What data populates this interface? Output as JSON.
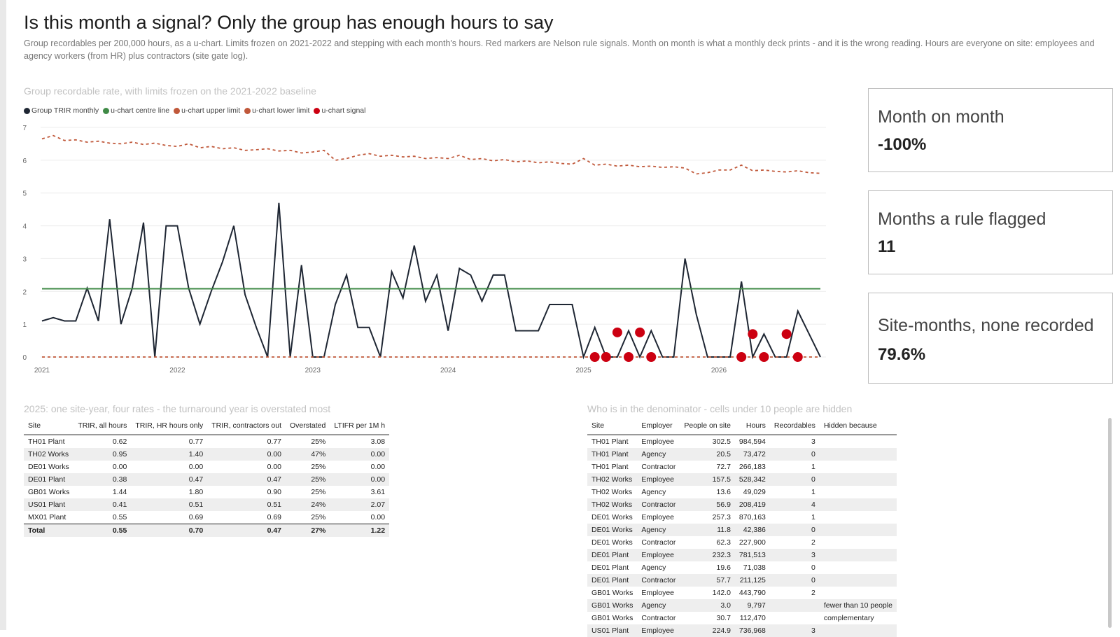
{
  "page": {
    "title": "Is this month a signal? Only the group has enough hours to say",
    "subtitle": "Group recordables per 200,000 hours, as a u-chart. Limits frozen on 2021-2022 and stepping with each month's hours. Red markers are Nelson rule signals. Month on month is what a monthly deck prints - and it is the wrong reading. Hours are everyone on site: employees and agency workers (from HR) plus contractors (site gate log)."
  },
  "chart": {
    "title": "Group recordable rate, with limits frozen on the 2021-2022 baseline",
    "legend": [
      {
        "label": "Group TRIR monthly",
        "color": "#1e2633"
      },
      {
        "label": "u-chart centre line",
        "color": "#3f8a46"
      },
      {
        "label": "u-chart upper limit",
        "color": "#c0583a"
      },
      {
        "label": "u-chart lower limit",
        "color": "#c0583a"
      },
      {
        "label": "u-chart signal",
        "color": "#cc0011"
      }
    ]
  },
  "chart_data": {
    "type": "line",
    "title": "Group recordable rate, with limits frozen on the 2021-2022 baseline",
    "x_start": "2021-01",
    "x_ticks": [
      "2021",
      "2022",
      "2023",
      "2024",
      "2025",
      "2026"
    ],
    "y_ticks": [
      "0",
      "1",
      "2",
      "3",
      "4",
      "5",
      "6",
      "7"
    ],
    "ylim": [
      0,
      7
    ],
    "grid": true,
    "legend_position": "top-left",
    "series": [
      {
        "name": "Group TRIR monthly",
        "color": "#1e2633",
        "style": "solid",
        "values": [
          1.1,
          1.2,
          1.1,
          1.1,
          2.1,
          1.1,
          4.2,
          1.0,
          2.1,
          4.1,
          0.0,
          4.0,
          4.0,
          2.1,
          1.0,
          2.0,
          2.9,
          4.0,
          1.9,
          0.9,
          0.0,
          4.7,
          0.0,
          2.8,
          0.0,
          0.0,
          1.6,
          2.5,
          0.9,
          0.9,
          0.0,
          2.6,
          1.8,
          3.4,
          1.7,
          2.5,
          0.8,
          2.7,
          2.5,
          1.7,
          2.5,
          2.5,
          0.8,
          0.8,
          0.8,
          1.6,
          1.6,
          1.6,
          0.0,
          0.9,
          0.0,
          0.0,
          0.8,
          0.0,
          0.8,
          0.0,
          0.0,
          3.0,
          1.3,
          0.0,
          0.0,
          0.0,
          2.3,
          0.0,
          0.7,
          0.0,
          0.0,
          1.4,
          0.7,
          0.0
        ]
      },
      {
        "name": "u-chart centre line",
        "color": "#3f8a46",
        "style": "solid",
        "values": [
          2.08,
          2.08,
          2.08,
          2.08,
          2.08,
          2.08,
          2.08,
          2.08,
          2.08,
          2.08,
          2.08,
          2.08,
          2.08,
          2.08,
          2.08,
          2.08,
          2.08,
          2.08,
          2.08,
          2.08,
          2.08,
          2.08,
          2.08,
          2.08,
          2.08,
          2.08,
          2.08,
          2.08,
          2.08,
          2.08,
          2.08,
          2.08,
          2.08,
          2.08,
          2.08,
          2.08,
          2.08,
          2.08,
          2.08,
          2.08,
          2.08,
          2.08,
          2.08,
          2.08,
          2.08,
          2.08,
          2.08,
          2.08,
          2.08,
          2.08,
          2.08,
          2.08,
          2.08,
          2.08,
          2.08,
          2.08,
          2.08,
          2.08,
          2.08,
          2.08,
          2.08,
          2.08,
          2.08,
          2.08,
          2.08,
          2.08,
          2.08,
          2.08,
          2.08,
          2.08
        ]
      },
      {
        "name": "u-chart upper limit",
        "color": "#c0583a",
        "style": "dashed",
        "values": [
          6.65,
          6.75,
          6.6,
          6.62,
          6.55,
          6.58,
          6.52,
          6.5,
          6.55,
          6.48,
          6.52,
          6.45,
          6.42,
          6.5,
          6.38,
          6.42,
          6.35,
          6.38,
          6.3,
          6.32,
          6.35,
          6.28,
          6.3,
          6.22,
          6.25,
          6.3,
          6.0,
          6.05,
          6.15,
          6.2,
          6.12,
          6.15,
          6.1,
          6.12,
          6.05,
          6.08,
          6.05,
          6.15,
          6.02,
          6.05,
          5.98,
          6.02,
          5.95,
          5.98,
          5.92,
          5.95,
          5.9,
          5.88,
          6.05,
          5.85,
          5.88,
          5.82,
          5.85,
          5.8,
          5.82,
          5.78,
          5.8,
          5.76,
          5.58,
          5.62,
          5.7,
          5.7,
          5.85,
          5.68,
          5.7,
          5.66,
          5.64,
          5.68,
          5.62,
          5.6
        ]
      },
      {
        "name": "u-chart lower limit",
        "color": "#c0583a",
        "style": "dashed",
        "values": [
          0,
          0,
          0,
          0,
          0,
          0,
          0,
          0,
          0,
          0,
          0,
          0,
          0,
          0,
          0,
          0,
          0,
          0,
          0,
          0,
          0,
          0,
          0,
          0,
          0,
          0,
          0,
          0,
          0,
          0,
          0,
          0,
          0,
          0,
          0,
          0,
          0,
          0,
          0,
          0,
          0,
          0,
          0,
          0,
          0,
          0,
          0,
          0,
          0,
          0,
          0,
          0,
          0,
          0,
          0,
          0,
          0,
          0,
          0,
          0,
          0,
          0,
          0,
          0,
          0,
          0,
          0,
          0,
          0,
          0
        ]
      },
      {
        "name": "u-chart signal",
        "color": "#cc0011",
        "style": "marker",
        "points": [
          {
            "i": 49,
            "y": 0.0
          },
          {
            "i": 50,
            "y": 0.0
          },
          {
            "i": 51,
            "y": 0.75
          },
          {
            "i": 52,
            "y": 0.0
          },
          {
            "i": 53,
            "y": 0.75
          },
          {
            "i": 54,
            "y": 0.0
          },
          {
            "i": 62,
            "y": 0.0
          },
          {
            "i": 63,
            "y": 0.7
          },
          {
            "i": 64,
            "y": 0.0
          },
          {
            "i": 66,
            "y": 0.7
          },
          {
            "i": 67,
            "y": 0.0
          }
        ]
      }
    ]
  },
  "kpis": [
    {
      "label": "Month on month",
      "value": "-100%"
    },
    {
      "label": "Months a rule flagged",
      "value": "11"
    },
    {
      "label": "Site-months, none recorded",
      "value": "79.6%"
    }
  ],
  "rates_table": {
    "title": "2025: one site-year, four rates - the turnaround year is overstated most",
    "headers": [
      "Site",
      "TRIR, all hours",
      "TRIR, HR hours only",
      "TRIR, contractors out",
      "Overstated",
      "LTIFR per 1M h"
    ],
    "rows": [
      [
        "TH01 Plant",
        "0.62",
        "0.77",
        "0.77",
        "25%",
        "3.08"
      ],
      [
        "TH02 Works",
        "0.95",
        "1.40",
        "0.00",
        "47%",
        "0.00"
      ],
      [
        "DE01 Works",
        "0.00",
        "0.00",
        "0.00",
        "25%",
        "0.00"
      ],
      [
        "DE01 Plant",
        "0.38",
        "0.47",
        "0.47",
        "25%",
        "0.00"
      ],
      [
        "GB01 Works",
        "1.44",
        "1.80",
        "0.90",
        "25%",
        "3.61"
      ],
      [
        "US01 Plant",
        "0.41",
        "0.51",
        "0.51",
        "24%",
        "2.07"
      ],
      [
        "MX01 Plant",
        "0.55",
        "0.69",
        "0.69",
        "25%",
        "0.00"
      ]
    ],
    "total": [
      "Total",
      "0.55",
      "0.70",
      "0.47",
      "27%",
      "1.22"
    ]
  },
  "denom_table": {
    "title": "Who is in the denominator - cells under 10 people are hidden",
    "headers": [
      "Site",
      "Employer",
      "People on site",
      "Hours",
      "Recordables",
      "Hidden because"
    ],
    "rows": [
      [
        "TH01 Plant",
        "Employee",
        "302.5",
        "984,594",
        "3",
        ""
      ],
      [
        "TH01 Plant",
        "Agency",
        "20.5",
        "73,472",
        "0",
        ""
      ],
      [
        "TH01 Plant",
        "Contractor",
        "72.7",
        "266,183",
        "1",
        ""
      ],
      [
        "TH02 Works",
        "Employee",
        "157.5",
        "528,342",
        "0",
        ""
      ],
      [
        "TH02 Works",
        "Agency",
        "13.6",
        "49,029",
        "1",
        ""
      ],
      [
        "TH02 Works",
        "Contractor",
        "56.9",
        "208,419",
        "4",
        ""
      ],
      [
        "DE01 Works",
        "Employee",
        "257.3",
        "870,163",
        "1",
        ""
      ],
      [
        "DE01 Works",
        "Agency",
        "11.8",
        "42,386",
        "0",
        ""
      ],
      [
        "DE01 Works",
        "Contractor",
        "62.3",
        "227,900",
        "2",
        ""
      ],
      [
        "DE01 Plant",
        "Employee",
        "232.3",
        "781,513",
        "3",
        ""
      ],
      [
        "DE01 Plant",
        "Agency",
        "19.6",
        "71,038",
        "0",
        ""
      ],
      [
        "DE01 Plant",
        "Contractor",
        "57.7",
        "211,125",
        "0",
        ""
      ],
      [
        "GB01 Works",
        "Employee",
        "142.0",
        "443,790",
        "2",
        ""
      ],
      [
        "GB01 Works",
        "Agency",
        "3.0",
        "9,797",
        "",
        "fewer than 10 people"
      ],
      [
        "GB01 Works",
        "Contractor",
        "30.7",
        "112,470",
        "",
        "complementary"
      ],
      [
        "US01 Plant",
        "Employee",
        "224.9",
        "736,968",
        "3",
        ""
      ]
    ]
  }
}
